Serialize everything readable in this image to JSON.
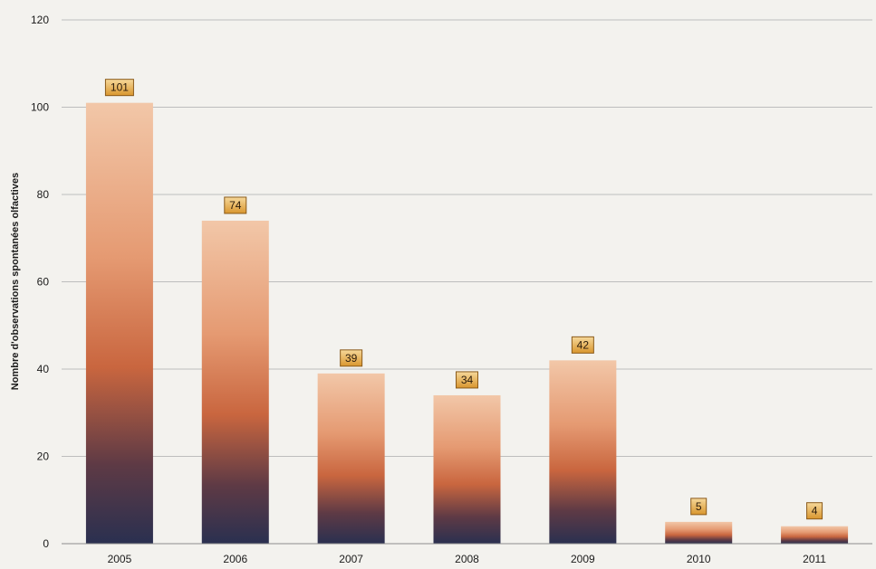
{
  "chart_data": {
    "type": "bar",
    "title": "",
    "xlabel": "",
    "ylabel": "Nombre d'observations spontanées olfactives",
    "categories": [
      "2005",
      "2006",
      "2007",
      "2008",
      "2009",
      "2010",
      "2011"
    ],
    "values": [
      101,
      74,
      39,
      34,
      42,
      5,
      4
    ],
    "data_labels": [
      "101",
      "74",
      "39",
      "34",
      "42",
      "5",
      "4"
    ],
    "ylim": [
      0,
      120
    ],
    "yticks": [
      0,
      20,
      40,
      60,
      80,
      100,
      120
    ],
    "ytick_labels": [
      "0",
      "20",
      "40",
      "60",
      "80",
      "100",
      "120"
    ],
    "grid": true,
    "legend": "none",
    "colors": {
      "bar_top": "#f2c7a8",
      "bar_mid": "#c9663f",
      "bar_bottom": "#2a3050",
      "label_box": "#e8b04a",
      "grid": "#bdbdbd"
    }
  }
}
